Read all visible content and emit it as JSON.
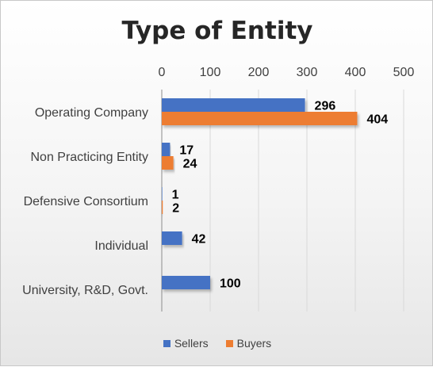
{
  "chart_data": {
    "type": "bar",
    "orientation": "horizontal",
    "title": "Type of Entity",
    "categories": [
      "Operating Company",
      "Non Practicing Entity",
      "Defensive Consortium",
      "Individual",
      "University, R&D, Govt."
    ],
    "series": [
      {
        "name": "Sellers",
        "color": "#4472C4",
        "values": [
          296,
          17,
          1,
          42,
          100
        ]
      },
      {
        "name": "Buyers",
        "color": "#ED7D31",
        "values": [
          404,
          24,
          2,
          null,
          null
        ]
      }
    ],
    "xlim": [
      0,
      500
    ],
    "xticks": [
      0,
      100,
      200,
      300,
      400,
      500
    ],
    "x_axis_position": "top",
    "grid": true,
    "legend_position": "bottom"
  }
}
